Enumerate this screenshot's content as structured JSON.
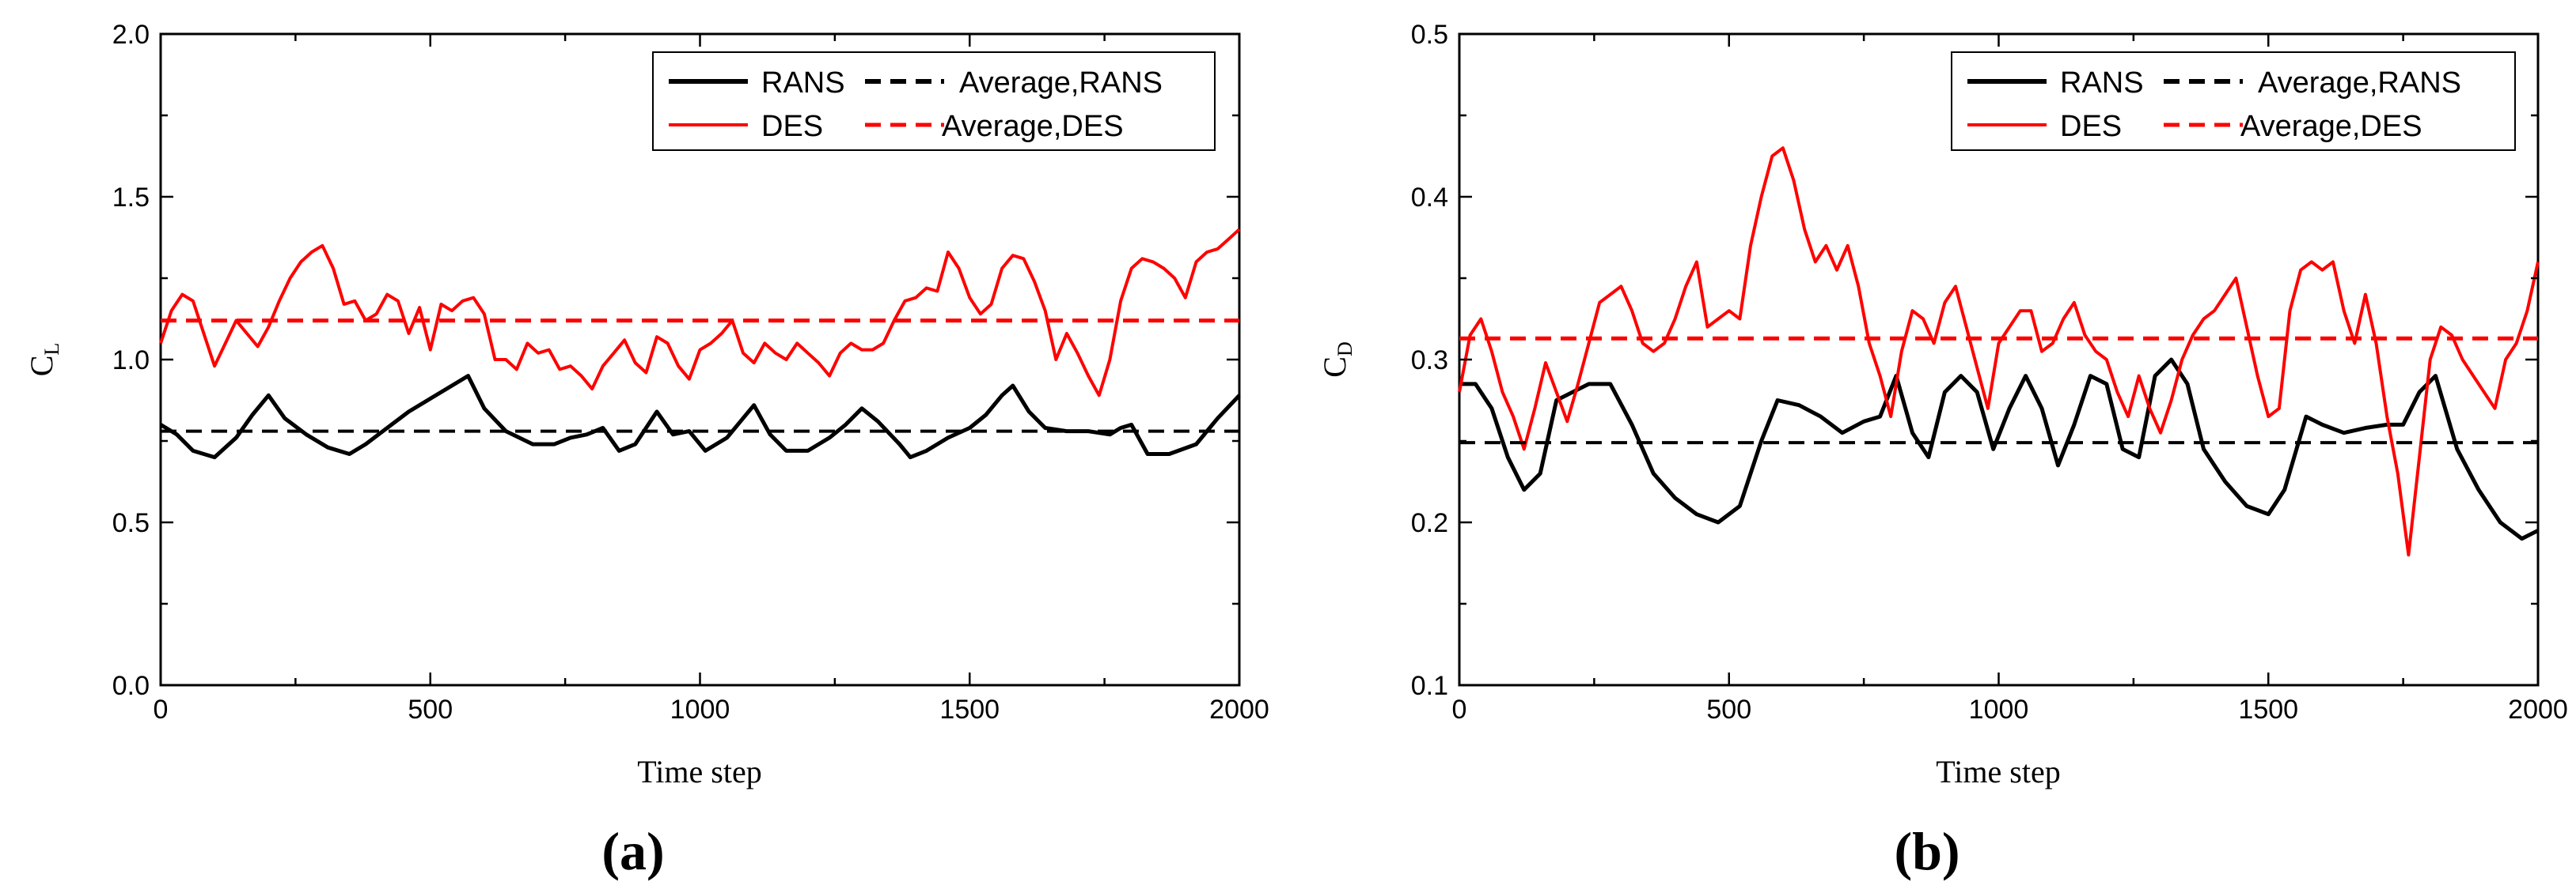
{
  "chart_data": [
    {
      "type": "line",
      "panel_label": "(a)",
      "xlabel": "Time step",
      "ylabel": {
        "main": "C",
        "sub": "L"
      },
      "xlim": [
        0,
        2000
      ],
      "ylim": [
        0.0,
        2.0
      ],
      "xticks": [
        "0",
        "500",
        "1000",
        "1500",
        "2000"
      ],
      "yticks": [
        "0.0",
        "0.5",
        "1.0",
        "1.5",
        "2.0"
      ],
      "xtick_values": [
        0,
        500,
        1000,
        1500,
        2000
      ],
      "ytick_values": [
        0.0,
        0.5,
        1.0,
        1.5,
        2.0
      ],
      "legend_position": "top-right",
      "series": [
        {
          "name": "RANS",
          "color": "#000000",
          "style": "solid",
          "x": [
            0,
            30,
            60,
            100,
            140,
            170,
            200,
            230,
            270,
            310,
            350,
            380,
            420,
            460,
            500,
            540,
            570,
            600,
            640,
            690,
            730,
            760,
            790,
            820,
            850,
            880,
            920,
            950,
            980,
            1010,
            1050,
            1080,
            1100,
            1130,
            1160,
            1200,
            1240,
            1270,
            1300,
            1330,
            1370,
            1390,
            1420,
            1460,
            1500,
            1530,
            1560,
            1580,
            1610,
            1640,
            1680,
            1720,
            1760,
            1780,
            1800,
            1830,
            1870,
            1920,
            1960,
            2000
          ],
          "y": [
            0.8,
            0.77,
            0.72,
            0.7,
            0.76,
            0.83,
            0.89,
            0.82,
            0.77,
            0.73,
            0.71,
            0.74,
            0.79,
            0.84,
            0.88,
            0.92,
            0.95,
            0.85,
            0.78,
            0.74,
            0.74,
            0.76,
            0.77,
            0.79,
            0.72,
            0.74,
            0.84,
            0.77,
            0.78,
            0.72,
            0.76,
            0.82,
            0.86,
            0.77,
            0.72,
            0.72,
            0.76,
            0.8,
            0.85,
            0.81,
            0.74,
            0.7,
            0.72,
            0.76,
            0.79,
            0.83,
            0.89,
            0.92,
            0.84,
            0.79,
            0.78,
            0.78,
            0.77,
            0.79,
            0.8,
            0.71,
            0.71,
            0.74,
            0.82,
            0.89
          ]
        },
        {
          "name": "Average,RANS",
          "color": "#000000",
          "style": "dashed",
          "x": [
            0,
            2000
          ],
          "y": [
            0.78,
            0.78
          ]
        },
        {
          "name": "DES",
          "color": "#ff0000",
          "style": "solid",
          "x": [
            0,
            20,
            40,
            60,
            80,
            100,
            120,
            140,
            160,
            180,
            200,
            220,
            240,
            260,
            280,
            300,
            320,
            340,
            360,
            380,
            400,
            420,
            440,
            460,
            480,
            500,
            520,
            540,
            560,
            580,
            600,
            620,
            640,
            660,
            680,
            700,
            720,
            740,
            760,
            780,
            800,
            820,
            840,
            860,
            880,
            900,
            920,
            940,
            960,
            980,
            1000,
            1020,
            1040,
            1060,
            1080,
            1100,
            1120,
            1140,
            1160,
            1180,
            1200,
            1220,
            1240,
            1260,
            1280,
            1300,
            1320,
            1340,
            1360,
            1380,
            1400,
            1420,
            1440,
            1460,
            1480,
            1500,
            1520,
            1540,
            1560,
            1580,
            1600,
            1620,
            1640,
            1660,
            1680,
            1700,
            1720,
            1740,
            1760,
            1780,
            1800,
            1820,
            1840,
            1860,
            1880,
            1900,
            1920,
            1940,
            1960,
            1980,
            2000
          ],
          "y": [
            1.05,
            1.15,
            1.2,
            1.18,
            1.08,
            0.98,
            1.05,
            1.12,
            1.08,
            1.04,
            1.1,
            1.18,
            1.25,
            1.3,
            1.33,
            1.35,
            1.28,
            1.17,
            1.18,
            1.12,
            1.14,
            1.2,
            1.18,
            1.08,
            1.16,
            1.03,
            1.17,
            1.15,
            1.18,
            1.19,
            1.14,
            1.0,
            1.0,
            0.97,
            1.05,
            1.02,
            1.03,
            0.97,
            0.98,
            0.95,
            0.91,
            0.98,
            1.02,
            1.06,
            0.99,
            0.96,
            1.07,
            1.05,
            0.98,
            0.94,
            1.03,
            1.05,
            1.08,
            1.12,
            1.02,
            0.99,
            1.05,
            1.02,
            1.0,
            1.05,
            1.02,
            0.99,
            0.95,
            1.02,
            1.05,
            1.03,
            1.03,
            1.05,
            1.12,
            1.18,
            1.19,
            1.22,
            1.21,
            1.33,
            1.28,
            1.19,
            1.14,
            1.17,
            1.28,
            1.32,
            1.31,
            1.24,
            1.15,
            1.0,
            1.08,
            1.02,
            0.95,
            0.89,
            1.0,
            1.18,
            1.28,
            1.31,
            1.3,
            1.28,
            1.25,
            1.19,
            1.3,
            1.33,
            1.34,
            1.37,
            1.4
          ]
        },
        {
          "name": "Average,DES",
          "color": "#ff0000",
          "style": "dashed",
          "x": [
            0,
            2000
          ],
          "y": [
            1.12,
            1.12
          ]
        }
      ]
    },
    {
      "type": "line",
      "panel_label": "(b)",
      "xlabel": "Time step",
      "ylabel": {
        "main": "C",
        "sub": "D"
      },
      "xlim": [
        0,
        2000
      ],
      "ylim": [
        0.1,
        0.5
      ],
      "xticks": [
        "0",
        "500",
        "1000",
        "1500",
        "2000"
      ],
      "yticks": [
        "0.1",
        "0.2",
        "0.3",
        "0.4",
        "0.5"
      ],
      "xtick_values": [
        0,
        500,
        1000,
        1500,
        2000
      ],
      "ytick_values": [
        0.1,
        0.2,
        0.3,
        0.4,
        0.5
      ],
      "legend_position": "top-right",
      "series": [
        {
          "name": "RANS",
          "color": "#000000",
          "style": "solid",
          "x": [
            0,
            30,
            60,
            90,
            120,
            150,
            180,
            210,
            240,
            280,
            320,
            360,
            400,
            440,
            480,
            520,
            560,
            590,
            630,
            670,
            710,
            750,
            780,
            810,
            840,
            870,
            900,
            930,
            960,
            990,
            1020,
            1050,
            1080,
            1110,
            1140,
            1170,
            1200,
            1230,
            1260,
            1290,
            1320,
            1350,
            1380,
            1420,
            1460,
            1500,
            1530,
            1570,
            1600,
            1640,
            1680,
            1720,
            1750,
            1780,
            1810,
            1850,
            1890,
            1930,
            1970,
            2000
          ],
          "y": [
            0.285,
            0.285,
            0.27,
            0.24,
            0.22,
            0.23,
            0.275,
            0.28,
            0.285,
            0.285,
            0.26,
            0.23,
            0.215,
            0.205,
            0.2,
            0.21,
            0.25,
            0.275,
            0.272,
            0.265,
            0.255,
            0.262,
            0.265,
            0.29,
            0.255,
            0.24,
            0.28,
            0.29,
            0.28,
            0.245,
            0.27,
            0.29,
            0.27,
            0.235,
            0.26,
            0.29,
            0.285,
            0.245,
            0.24,
            0.29,
            0.3,
            0.285,
            0.245,
            0.225,
            0.21,
            0.205,
            0.22,
            0.265,
            0.26,
            0.255,
            0.258,
            0.26,
            0.26,
            0.28,
            0.29,
            0.245,
            0.22,
            0.2,
            0.19,
            0.195
          ]
        },
        {
          "name": "Average,RANS",
          "color": "#000000",
          "style": "dashed",
          "x": [
            0,
            2000
          ],
          "y": [
            0.249,
            0.249
          ]
        },
        {
          "name": "DES",
          "color": "#ff0000",
          "style": "solid",
          "x": [
            0,
            20,
            40,
            60,
            80,
            100,
            120,
            140,
            160,
            180,
            200,
            220,
            240,
            260,
            280,
            300,
            320,
            340,
            360,
            380,
            400,
            420,
            440,
            460,
            480,
            500,
            520,
            540,
            560,
            580,
            600,
            620,
            640,
            660,
            680,
            700,
            720,
            740,
            760,
            780,
            800,
            820,
            840,
            860,
            880,
            900,
            920,
            940,
            960,
            980,
            1000,
            1020,
            1040,
            1060,
            1080,
            1100,
            1120,
            1140,
            1160,
            1180,
            1200,
            1220,
            1240,
            1260,
            1280,
            1300,
            1320,
            1340,
            1360,
            1380,
            1400,
            1420,
            1440,
            1460,
            1480,
            1500,
            1520,
            1540,
            1560,
            1580,
            1600,
            1620,
            1640,
            1660,
            1680,
            1700,
            1720,
            1740,
            1760,
            1780,
            1800,
            1820,
            1840,
            1860,
            1880,
            1900,
            1920,
            1940,
            1960,
            1980,
            2000
          ],
          "y": [
            0.28,
            0.315,
            0.325,
            0.305,
            0.28,
            0.265,
            0.245,
            0.27,
            0.298,
            0.28,
            0.262,
            0.285,
            0.31,
            0.335,
            0.34,
            0.345,
            0.33,
            0.31,
            0.305,
            0.31,
            0.325,
            0.345,
            0.36,
            0.32,
            0.325,
            0.33,
            0.325,
            0.37,
            0.4,
            0.425,
            0.43,
            0.41,
            0.38,
            0.36,
            0.37,
            0.355,
            0.37,
            0.345,
            0.31,
            0.29,
            0.265,
            0.305,
            0.33,
            0.325,
            0.31,
            0.335,
            0.345,
            0.32,
            0.295,
            0.27,
            0.31,
            0.32,
            0.33,
            0.33,
            0.305,
            0.31,
            0.325,
            0.335,
            0.315,
            0.305,
            0.3,
            0.28,
            0.265,
            0.29,
            0.27,
            0.255,
            0.275,
            0.3,
            0.315,
            0.325,
            0.33,
            0.34,
            0.35,
            0.32,
            0.29,
            0.265,
            0.27,
            0.33,
            0.355,
            0.36,
            0.355,
            0.36,
            0.33,
            0.31,
            0.34,
            0.31,
            0.265,
            0.23,
            0.18,
            0.24,
            0.3,
            0.32,
            0.315,
            0.3,
            0.29,
            0.28,
            0.27,
            0.3,
            0.31,
            0.33,
            0.36
          ]
        },
        {
          "name": "Average,DES",
          "color": "#ff0000",
          "style": "dashed",
          "x": [
            0,
            2000
          ],
          "y": [
            0.313,
            0.313
          ]
        }
      ]
    }
  ]
}
